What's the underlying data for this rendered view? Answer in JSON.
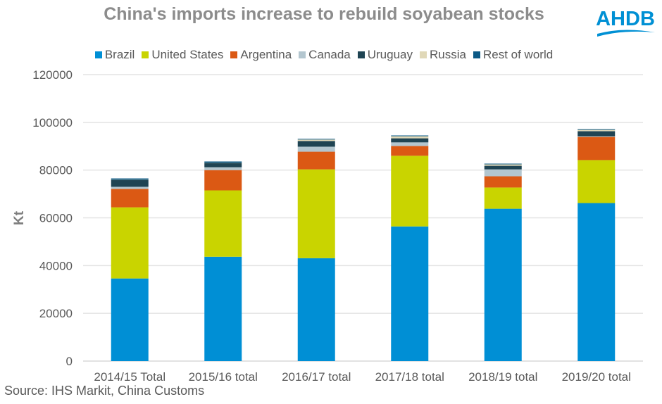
{
  "logo_text": "AHDB",
  "source": "Source: IHS Markit, China Customs",
  "chart_data": {
    "type": "bar",
    "stacked": true,
    "title": "China's imports increase to rebuild soyabean stocks",
    "xlabel": "",
    "ylabel": "Kt",
    "ylim": [
      0,
      120000
    ],
    "yticks": [
      0,
      20000,
      40000,
      60000,
      80000,
      100000,
      120000
    ],
    "grid": true,
    "legend_position": "top",
    "categories": [
      "2014/15 Total",
      "2015/16 total",
      "2016/17 total",
      "2017/18 total",
      "2018/19 total",
      "2019/20 total"
    ],
    "series": [
      {
        "name": "Brazil",
        "color": "#008fd5",
        "values": [
          34600,
          43700,
          43100,
          56400,
          63800,
          66200
        ]
      },
      {
        "name": "United States",
        "color": "#c9d400",
        "values": [
          29800,
          27800,
          37200,
          29600,
          8900,
          18000
        ]
      },
      {
        "name": "Argentina",
        "color": "#db5914",
        "values": [
          7700,
          8500,
          7400,
          4100,
          4700,
          9700
        ]
      },
      {
        "name": "Canada",
        "color": "#b3c6cf",
        "values": [
          900,
          1200,
          2100,
          1500,
          2900,
          300
        ]
      },
      {
        "name": "Uruguay",
        "color": "#1f4453",
        "values": [
          2900,
          1800,
          2400,
          1700,
          1500,
          2100
        ]
      },
      {
        "name": "Russia",
        "color": "#e0d8b8",
        "values": [
          100,
          100,
          600,
          900,
          600,
          600
        ]
      },
      {
        "name": "Rest of world",
        "color": "#0c5a86",
        "values": [
          500,
          500,
          300,
          300,
          300,
          300
        ]
      }
    ]
  }
}
